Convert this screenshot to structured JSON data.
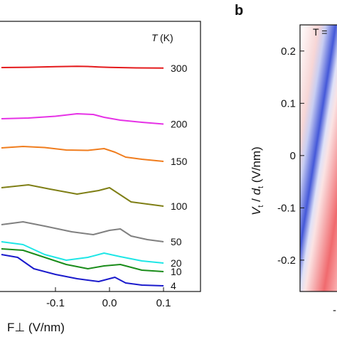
{
  "chart_data": [
    {
      "type": "line",
      "panel": "",
      "title": "",
      "xlabel": "F⊥ (V/nm)",
      "x_ticks": [
        "-0.1",
        "0.0",
        "0.1"
      ],
      "x_tick_values": [
        -0.1,
        0.0,
        0.1
      ],
      "xlim": [
        -0.2,
        0.1
      ],
      "legend_title": "T (K)",
      "grid": false,
      "series": [
        {
          "name": "300",
          "color": "#e41a1c",
          "baseline": 95,
          "x": [
            -0.2,
            -0.15,
            -0.1,
            -0.06,
            -0.04,
            -0.02,
            0.0,
            0.05,
            0.1
          ],
          "y": [
            0.0,
            0.4,
            1.2,
            1.8,
            1.5,
            0.8,
            0.2,
            -0.5,
            -0.8
          ]
        },
        {
          "name": "200",
          "color": "#e632e6",
          "baseline": 172,
          "x": [
            -0.2,
            -0.15,
            -0.1,
            -0.06,
            -0.03,
            -0.01,
            0.02,
            0.06,
            0.1
          ],
          "y": [
            5.0,
            6.0,
            8.5,
            12.0,
            11.0,
            7.0,
            3.0,
            0.0,
            -2.5
          ]
        },
        {
          "name": "150",
          "color": "#f07d1e",
          "baseline": 224,
          "x": [
            -0.2,
            -0.16,
            -0.12,
            -0.08,
            -0.04,
            -0.01,
            0.01,
            0.03,
            0.06,
            0.1
          ],
          "y": [
            16.0,
            18.0,
            16.5,
            13.0,
            12.5,
            15.0,
            10.0,
            3.0,
            0.0,
            -3.0
          ]
        },
        {
          "name": "100",
          "color": "#7f7f16",
          "baseline": 288,
          "x": [
            -0.2,
            -0.15,
            -0.11,
            -0.06,
            -0.02,
            0.0,
            0.02,
            0.04,
            0.07,
            0.1
          ],
          "y": [
            24.0,
            28.0,
            22.0,
            15.0,
            20.0,
            24.0,
            14.0,
            4.0,
            1.0,
            -2.0
          ]
        },
        {
          "name": "50",
          "color": "#808080",
          "baseline": 338,
          "x": [
            -0.2,
            -0.16,
            -0.12,
            -0.07,
            -0.03,
            0.0,
            0.02,
            0.04,
            0.07,
            0.1
          ],
          "y": [
            22.0,
            26.0,
            20.0,
            12.0,
            8.0,
            14.0,
            16.0,
            6.0,
            1.0,
            -2.0
          ]
        },
        {
          "name": "20",
          "color": "#1ee6e6",
          "baseline": 370,
          "x": [
            -0.2,
            -0.16,
            -0.12,
            -0.08,
            -0.04,
            -0.01,
            0.02,
            0.06,
            0.1
          ],
          "y": [
            30.0,
            26.0,
            12.0,
            4.0,
            8.0,
            14.0,
            9.0,
            3.0,
            0.0
          ]
        },
        {
          "name": "10",
          "color": "#1a8c1a",
          "baseline": 382,
          "x": [
            -0.2,
            -0.16,
            -0.12,
            -0.08,
            -0.04,
            -0.01,
            0.02,
            0.06,
            0.1
          ],
          "y": [
            32.0,
            30.0,
            20.0,
            10.0,
            4.0,
            8.0,
            10.0,
            2.0,
            0.0
          ]
        },
        {
          "name": "4",
          "color": "#1a1acc",
          "baseline": 400,
          "x": [
            -0.2,
            -0.17,
            -0.14,
            -0.1,
            -0.06,
            -0.02,
            0.01,
            0.03,
            0.06,
            0.1
          ],
          "y": [
            42.0,
            38.0,
            22.0,
            14.0,
            8.0,
            4.0,
            10.0,
            2.0,
            -1.0,
            -2.0
          ]
        }
      ]
    },
    {
      "type": "heatmap",
      "panel": "b",
      "title": "",
      "annotation": "T =",
      "ylabel": "Vt / dt (V/nm)",
      "ylabel_main": "V",
      "ylabel_sub1": "t",
      "ylabel_mid": " / ",
      "ylabel_d": "d",
      "ylabel_sub2": "t",
      "ylabel_unit": " (V/nm)",
      "y_ticks": [
        "0.2",
        "0.1",
        "0",
        "-0.1",
        "-0.2"
      ],
      "y_tick_values": [
        0.2,
        0.1,
        0.0,
        -0.1,
        -0.2
      ],
      "ylim": [
        -0.26,
        0.25
      ],
      "x_ticks_partial": [
        "-"
      ],
      "colors": {
        "positive": "#e8222a",
        "negative": "#2b3ccc",
        "zero": "#ffffff"
      }
    }
  ]
}
